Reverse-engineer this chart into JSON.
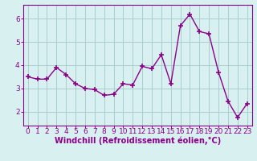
{
  "x": [
    0,
    1,
    2,
    3,
    4,
    5,
    6,
    7,
    8,
    9,
    10,
    11,
    12,
    13,
    14,
    15,
    16,
    17,
    18,
    19,
    20,
    21,
    22,
    23
  ],
  "y": [
    3.5,
    3.4,
    3.4,
    3.9,
    3.6,
    3.2,
    3.0,
    2.95,
    2.7,
    2.75,
    3.2,
    3.15,
    3.95,
    3.85,
    4.45,
    3.2,
    5.7,
    6.2,
    5.45,
    5.35,
    3.7,
    2.45,
    1.75,
    2.35
  ],
  "line_color": "#8B008B",
  "marker": "+",
  "marker_size": 4,
  "marker_linewidth": 1.2,
  "xlabel": "Windchill (Refroidissement éolien,°C)",
  "xlabel_fontsize": 7,
  "xtick_labels": [
    "0",
    "1",
    "2",
    "3",
    "4",
    "5",
    "6",
    "7",
    "8",
    "9",
    "10",
    "11",
    "12",
    "13",
    "14",
    "15",
    "16",
    "17",
    "18",
    "19",
    "20",
    "21",
    "22",
    "23"
  ],
  "ytick_values": [
    2,
    3,
    4,
    5,
    6
  ],
  "ylim": [
    1.4,
    6.6
  ],
  "xlim": [
    -0.5,
    23.5
  ],
  "background_color": "#d8f0f0",
  "grid_color": "#aacece",
  "tick_fontsize": 6.5,
  "line_width": 1.0
}
